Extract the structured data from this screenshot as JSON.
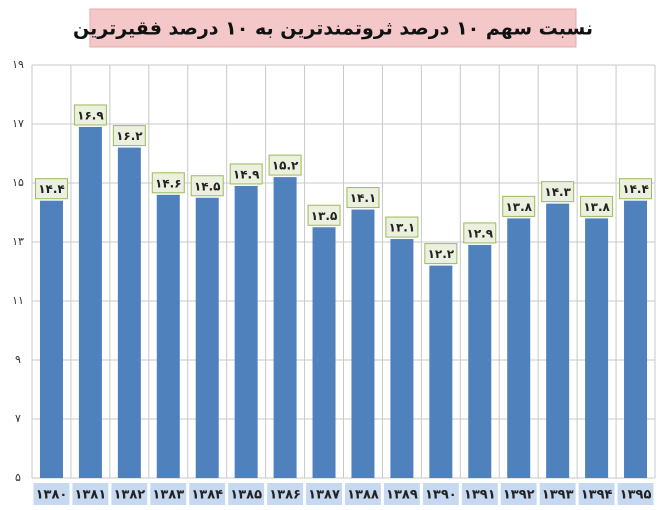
{
  "chart_data": {
    "type": "bar",
    "title": "نسبت سهم ۱۰ درصد ثروتمندترین به ۱۰ درصد فقیرترین",
    "categories": [
      "۱۳۸۰",
      "۱۳۸۱",
      "۱۳۸۲",
      "۱۳۸۳",
      "۱۳۸۴",
      "۱۳۸۵",
      "۱۳۸۶",
      "۱۳۸۷",
      "۱۳۸۸",
      "۱۳۸۹",
      "۱۳۹۰",
      "۱۳۹۱",
      "۱۳۹۲",
      "۱۳۹۳",
      "۱۳۹۴",
      "۱۳۹۵"
    ],
    "values": [
      14.4,
      16.9,
      16.2,
      14.6,
      14.5,
      14.9,
      15.2,
      13.5,
      14.1,
      13.1,
      12.2,
      12.9,
      13.8,
      14.3,
      13.8,
      14.4
    ],
    "value_labels": [
      "۱۴.۴",
      "۱۶.۹",
      "۱۶.۲",
      "۱۴.۶",
      "۱۴.۵",
      "۱۴.۹",
      "۱۵.۲",
      "۱۳.۵",
      "۱۴.۱",
      "۱۳.۱",
      "۱۲.۲",
      "۱۲.۹",
      "۱۳.۸",
      "۱۴.۳",
      "۱۳.۸",
      "۱۴.۴"
    ],
    "color": "#4f81bd",
    "ylim": [
      5,
      19
    ],
    "yticks": [
      {
        "value": 5,
        "label": "۵"
      },
      {
        "value": 7,
        "label": "۷"
      },
      {
        "value": 9,
        "label": "۹"
      },
      {
        "value": 11,
        "label": "۱۱"
      },
      {
        "value": 13,
        "label": "۱۳"
      },
      {
        "value": 15,
        "label": "۱۵"
      },
      {
        "value": 17,
        "label": "۱۷"
      },
      {
        "value": 19,
        "label": "۱۹"
      }
    ],
    "grid": true
  }
}
